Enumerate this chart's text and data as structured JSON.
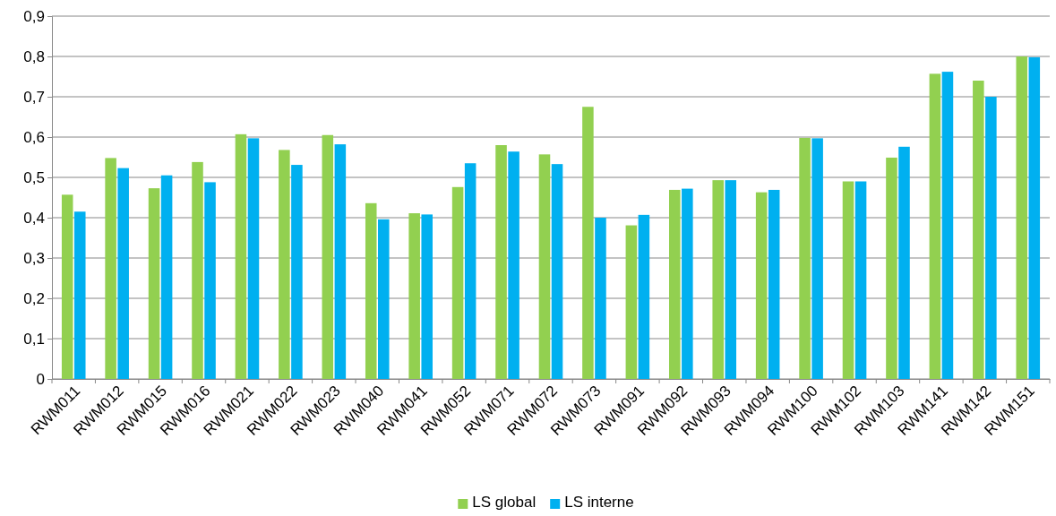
{
  "chart_data": {
    "type": "bar",
    "categories": [
      "RWM011",
      "RWM012",
      "RWM015",
      "RWM016",
      "RWM021",
      "RWM022",
      "RWM023",
      "RWM040",
      "RWM041",
      "RWM052",
      "RWM071",
      "RWM072",
      "RWM073",
      "RWM091",
      "RWM092",
      "RWM093",
      "RWM094",
      "RWM100",
      "RWM102",
      "RWM103",
      "RWM141",
      "RWM142",
      "RWM151"
    ],
    "series": [
      {
        "name": "LS global",
        "color": "#92d050",
        "values": [
          0.457,
          0.548,
          0.473,
          0.538,
          0.607,
          0.568,
          0.605,
          0.436,
          0.411,
          0.476,
          0.58,
          0.557,
          0.675,
          0.381,
          0.469,
          0.493,
          0.463,
          0.598,
          0.49,
          0.549,
          0.757,
          0.74,
          0.8
        ]
      },
      {
        "name": "LS interne",
        "color": "#00b0f0",
        "values": [
          0.415,
          0.523,
          0.505,
          0.488,
          0.597,
          0.531,
          0.582,
          0.396,
          0.408,
          0.535,
          0.564,
          0.533,
          0.4,
          0.407,
          0.472,
          0.493,
          0.469,
          0.597,
          0.49,
          0.576,
          0.762,
          0.7,
          0.798
        ]
      }
    ],
    "ylim": [
      0,
      0.9
    ],
    "yticks": [
      0,
      {
        "value": 0.1,
        "label": "0,1"
      },
      {
        "value": 0.2,
        "label": "0,2"
      },
      {
        "value": 0.3,
        "label": "0,3"
      },
      {
        "value": 0.4,
        "label": "0,4"
      },
      {
        "value": 0.5,
        "label": "0,5"
      },
      {
        "value": 0.6,
        "label": "0,6"
      },
      {
        "value": 0.7,
        "label": "0,7"
      },
      {
        "value": 0.8,
        "label": "0,8"
      },
      {
        "value": 0.9,
        "label": "0,9"
      }
    ],
    "grid": "y",
    "legend": "bottom"
  }
}
